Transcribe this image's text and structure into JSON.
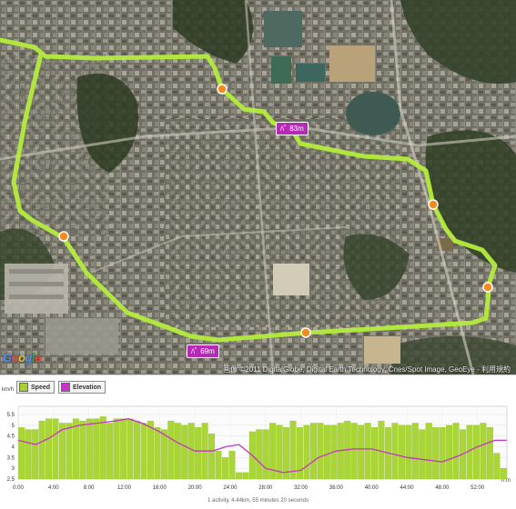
{
  "map": {
    "elevation_markers": [
      "ﾊﾟ 83m",
      "ﾊﾟ 69m"
    ],
    "copyright": "画像 ©2011 DigitalGlobe, Digital Earth Technology, Cnes/Spot Image, GeoEye - 利用規約",
    "logo": "Google"
  },
  "chart": {
    "legend": [
      {
        "label": "Speed",
        "color": "#a6d22e"
      },
      {
        "label": "Elevation",
        "color": "#cc33cc"
      }
    ],
    "y_unit": "km/h",
    "x_unit": "h:m",
    "summary": "1 activity, 4.44km, 55 minutes 20 seconds"
  },
  "chart_data": {
    "type": "bar",
    "xlabel": "h:m",
    "ylabel": "km/h",
    "xlim": [
      0,
      55.33
    ],
    "ylim": [
      2.5,
      5.5
    ],
    "x_ticks": [
      "0:00",
      "4:00",
      "8:00",
      "12:00",
      "16:00",
      "20:00",
      "24:00",
      "28:00",
      "32:00",
      "36:00",
      "40:00",
      "44:00",
      "48:00",
      "52:00"
    ],
    "y_ticks": [
      "5.5",
      "5",
      "4.5",
      "4",
      "3.5",
      "3",
      "2.5"
    ],
    "series": [
      {
        "name": "Speed",
        "values": [
          4.9,
          4.8,
          4.8,
          5.2,
          5.3,
          5.3,
          5.1,
          5.1,
          5.3,
          5.2,
          5.3,
          5.3,
          5.4,
          5.1,
          5.3,
          5.3,
          5.3,
          5.2,
          5.1,
          5.2,
          4.9,
          4.8,
          5.2,
          5.1,
          5.0,
          5.1,
          4.9,
          5.1,
          4.6,
          3.8,
          3.5,
          3.8,
          2.8,
          2.8,
          4.7,
          4.8,
          4.8,
          5.1,
          5.0,
          4.9,
          5.2,
          4.9,
          5.0,
          5.1,
          5.1,
          5.0,
          5.0,
          5.1,
          5.2,
          5.1,
          5.0,
          5.1,
          4.9,
          5.2,
          4.9,
          5.1,
          5.0,
          5.0,
          5.1,
          4.8,
          5.1,
          4.9,
          4.9,
          5.0,
          5.1,
          4.8,
          5.0,
          5.0,
          5.1,
          4.9,
          3.7,
          3.0
        ]
      },
      {
        "name": "Elevation",
        "x": [
          0,
          2,
          3.5,
          5,
          7,
          9,
          11,
          12.5,
          14,
          16,
          18,
          20,
          22,
          23.5,
          25,
          26.5,
          28,
          30,
          32,
          34,
          36,
          38,
          40,
          42,
          44,
          46,
          48,
          50,
          52,
          54,
          55.3
        ],
        "values": [
          4.3,
          4.1,
          4.4,
          4.8,
          5.0,
          5.1,
          5.2,
          5.3,
          5.1,
          4.7,
          4.2,
          3.8,
          3.8,
          4.0,
          4.1,
          3.6,
          3.0,
          2.8,
          2.9,
          3.5,
          3.8,
          3.9,
          3.9,
          3.7,
          3.5,
          3.4,
          3.3,
          3.6,
          4.0,
          4.3,
          4.3
        ]
      }
    ]
  }
}
